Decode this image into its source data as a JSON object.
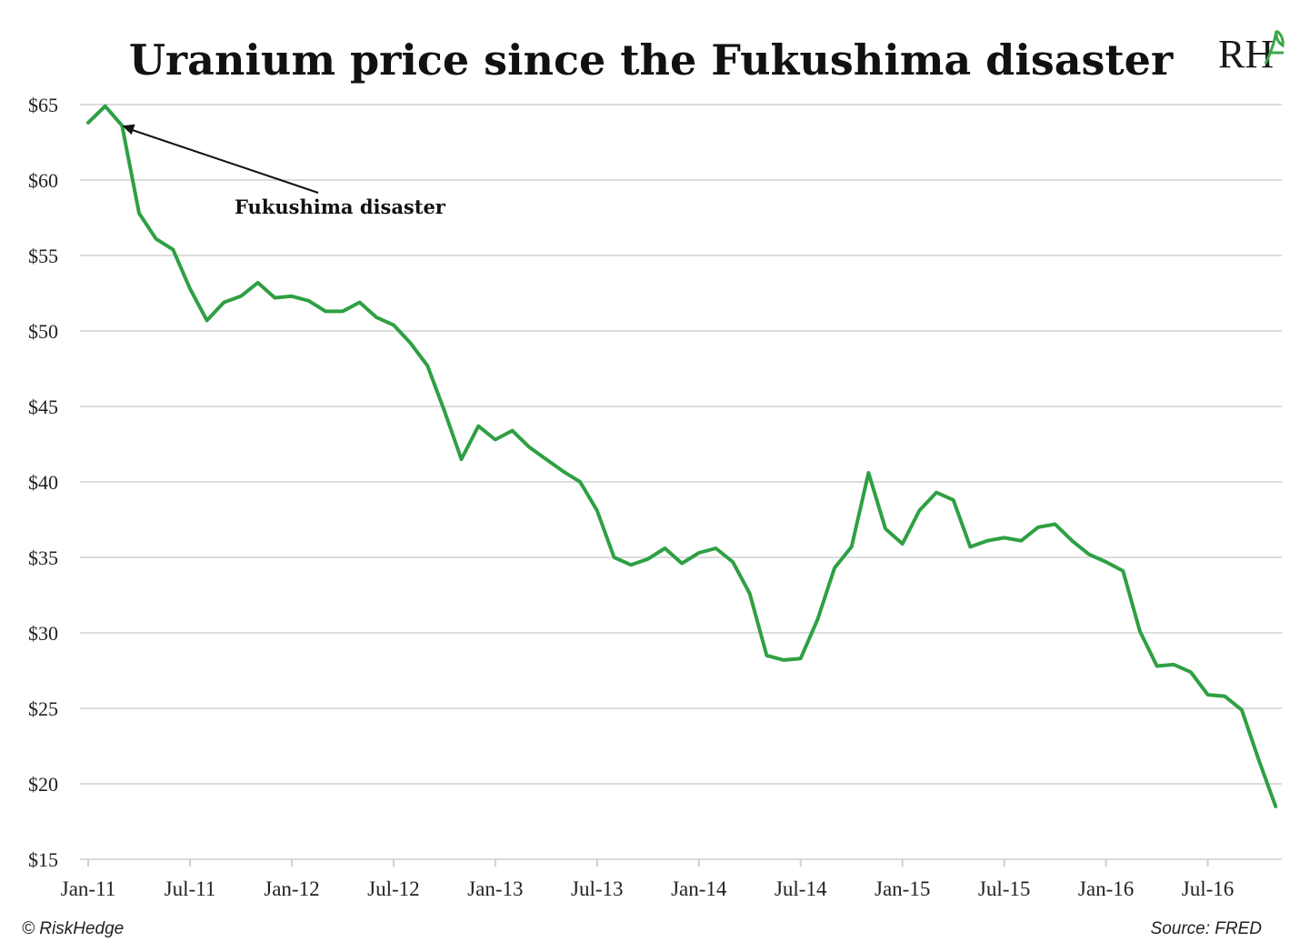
{
  "chart_data": {
    "type": "line",
    "title": "Uranium price since the Fukushima disaster",
    "xlabel": "",
    "ylabel": "",
    "ylim": [
      15,
      65
    ],
    "yticks": [
      15,
      20,
      25,
      30,
      35,
      40,
      45,
      50,
      55,
      60,
      65
    ],
    "ytick_labels": [
      "$15",
      "$20",
      "$25",
      "$30",
      "$35",
      "$40",
      "$45",
      "$50",
      "$55",
      "$60",
      "$65"
    ],
    "xtick_labels": [
      "Jan-11",
      "Jul-11",
      "Jan-12",
      "Jul-12",
      "Jan-13",
      "Jul-13",
      "Jan-14",
      "Jul-14",
      "Jan-15",
      "Jul-15",
      "Jan-16",
      "Jul-16"
    ],
    "grid": true,
    "line_color": "#2ea043",
    "series": [
      {
        "x": [
          "2011-01",
          "2011-02",
          "2011-03",
          "2011-04",
          "2011-05",
          "2011-06",
          "2011-07",
          "2011-08",
          "2011-09",
          "2011-10",
          "2011-11",
          "2011-12",
          "2012-01",
          "2012-02",
          "2012-03",
          "2012-04",
          "2012-05",
          "2012-06",
          "2012-07",
          "2012-08",
          "2012-09",
          "2012-10",
          "2012-11",
          "2012-12",
          "2013-01",
          "2013-02",
          "2013-03",
          "2013-04",
          "2013-05",
          "2013-06",
          "2013-07",
          "2013-08",
          "2013-09",
          "2013-10",
          "2013-11",
          "2013-12",
          "2014-01",
          "2014-02",
          "2014-03",
          "2014-04",
          "2014-05",
          "2014-06",
          "2014-07",
          "2014-08",
          "2014-09",
          "2014-10",
          "2014-11",
          "2014-12",
          "2015-01",
          "2015-02",
          "2015-03",
          "2015-04",
          "2015-05",
          "2015-06",
          "2015-07",
          "2015-08",
          "2015-09",
          "2015-10",
          "2015-11",
          "2015-12",
          "2016-01",
          "2016-02",
          "2016-03",
          "2016-04",
          "2016-05",
          "2016-06",
          "2016-07",
          "2016-08",
          "2016-09",
          "2016-10",
          "2016-11"
        ],
        "values": [
          63.8,
          64.9,
          63.6,
          57.8,
          56.1,
          55.4,
          52.8,
          50.7,
          51.9,
          52.3,
          53.2,
          52.2,
          52.3,
          52.0,
          51.3,
          51.3,
          51.9,
          50.9,
          50.4,
          49.2,
          47.7,
          44.7,
          41.5,
          43.7,
          42.8,
          43.4,
          42.3,
          41.5,
          40.7,
          40.0,
          38.1,
          35.0,
          34.5,
          34.9,
          35.6,
          34.6,
          35.3,
          35.6,
          34.7,
          32.6,
          28.5,
          28.2,
          28.3,
          30.9,
          34.3,
          35.7,
          40.6,
          36.9,
          35.9,
          38.1,
          39.3,
          38.8,
          35.7,
          36.1,
          36.3,
          36.1,
          37.0,
          37.2,
          36.1,
          35.2,
          34.7,
          34.1,
          30.1,
          27.8,
          27.9,
          27.4,
          25.9,
          25.8,
          24.9,
          21.6,
          18.5
        ]
      }
    ],
    "annotations": [
      {
        "text": "Fukushima disaster",
        "x": "2011-03",
        "y": 63.6
      }
    ]
  },
  "footer": {
    "copyright": "© RiskHedge",
    "source": "Source: FRED"
  },
  "logo": {
    "text": "RH",
    "accent_color": "#3aa845"
  }
}
